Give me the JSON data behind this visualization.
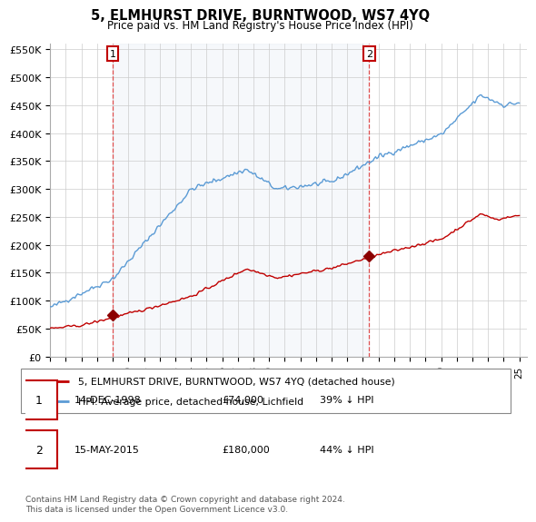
{
  "title": "5, ELMHURST DRIVE, BURNTWOOD, WS7 4YQ",
  "subtitle": "Price paid vs. HM Land Registry's House Price Index (HPI)",
  "ylabel_ticks": [
    "£0",
    "£50K",
    "£100K",
    "£150K",
    "£200K",
    "£250K",
    "£300K",
    "£350K",
    "£400K",
    "£450K",
    "£500K",
    "£550K"
  ],
  "ylabel_values": [
    0,
    50000,
    100000,
    150000,
    200000,
    250000,
    300000,
    350000,
    400000,
    450000,
    500000,
    550000
  ],
  "ylim": [
    0,
    560000
  ],
  "hpi_color": "#5b9bd5",
  "hpi_fill_color": "#dce6f1",
  "price_color": "#c00000",
  "marker_color": "#8b0000",
  "dashed_color": "#e05050",
  "annotation_box_color": "#c00000",
  "legend_label_price": "5, ELMHURST DRIVE, BURNTWOOD, WS7 4YQ (detached house)",
  "legend_label_hpi": "HPI: Average price, detached house, Lichfield",
  "transaction1_date": "14-DEC-1998",
  "transaction1_price": "£74,000",
  "transaction1_pct": "39% ↓ HPI",
  "transaction2_date": "15-MAY-2015",
  "transaction2_price": "£180,000",
  "transaction2_pct": "44% ↓ HPI",
  "footer": "Contains HM Land Registry data © Crown copyright and database right 2024.\nThis data is licensed under the Open Government Licence v3.0.",
  "transaction1_year": 1999.0,
  "transaction2_year": 2015.4,
  "transaction1_price_val": 74000,
  "transaction2_price_val": 180000,
  "xlim_start": 1995,
  "xlim_end": 2025.5
}
